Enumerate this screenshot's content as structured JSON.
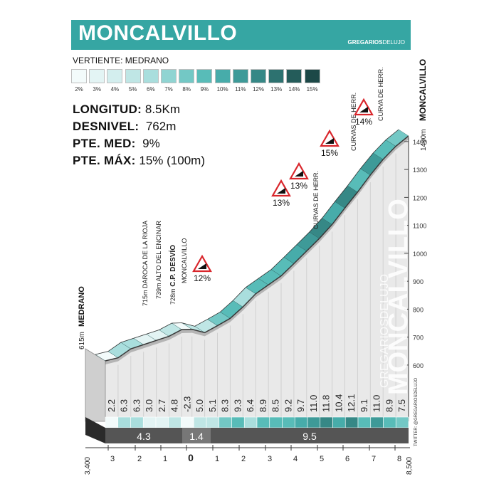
{
  "header": {
    "title": "MONCALVILLO",
    "brand_a": "GREGARIOS",
    "brand_b": "DELUJO",
    "vertiente": "VERTIENTE:  MEDRANO"
  },
  "scale": {
    "labels": [
      "2%",
      "3%",
      "4%",
      "5%",
      "6%",
      "7%",
      "8%",
      "9%",
      "10%",
      "11%",
      "12%",
      "13%",
      "14%",
      "15%"
    ],
    "colors": [
      "#f3fbfb",
      "#e3f4f4",
      "#d3eeee",
      "#bfe6e5",
      "#a9dedd",
      "#90d4d2",
      "#73c8c5",
      "#58bcb8",
      "#47acaa",
      "#3e9a98",
      "#368886",
      "#2d7270",
      "#245c5a",
      "#1c4847"
    ]
  },
  "stats": [
    {
      "label": "LONGITUD:",
      "value": "8.5Km"
    },
    {
      "label": "DESNIVEL:",
      "value": "762m"
    },
    {
      "label": "PTE. MED:",
      "value": "9%"
    },
    {
      "label": "PTE. MÁX:",
      "value": "15% (100m)"
    }
  ],
  "chart_data": {
    "type": "area",
    "y_axis_ticks": [
      "600",
      "700",
      "800",
      "900",
      "1000",
      "1100",
      "1200",
      "1300",
      "1400"
    ],
    "ylim": [
      615,
      1490
    ],
    "profile_km": [
      0,
      0.5,
      1,
      1.5,
      2,
      2.5,
      3,
      3.4,
      3.9,
      4.4,
      4.9,
      5.4,
      5.9,
      6.4,
      6.9,
      7.4,
      7.9,
      8.4,
      8.9,
      9.4,
      9.9,
      10.4,
      10.9,
      11.4,
      11.9
    ],
    "profile_elev": [
      615,
      626,
      658,
      673,
      688,
      703,
      727,
      728,
      716,
      741,
      767,
      808,
      855,
      887,
      919,
      963,
      1008,
      1053,
      1103,
      1162,
      1219,
      1280,
      1336,
      1383,
      1420
    ],
    "segment_gradients": [
      "2.2",
      "6.3",
      "6.3",
      "3.0",
      "2.7",
      "4.8",
      "-2.3",
      "5.0",
      "5.1",
      "8.3",
      "9.3",
      "6.4",
      "8.9",
      "8.5",
      "9.2",
      "9.7",
      "11.0",
      "11.8",
      "10.4",
      "12.1",
      "9.1",
      "11.0",
      "8.9",
      "7.5"
    ],
    "distance_labels": [
      "3",
      "2",
      "1",
      "0",
      "1",
      "2",
      "3",
      "4",
      "5",
      "6",
      "7",
      "8"
    ],
    "start_distance": "3,400",
    "end_distance": "8,500",
    "sections": [
      "4.3",
      "1.4",
      "9.5"
    ],
    "start_label": "615m",
    "start_name": "MEDRANO",
    "summit_label": "1490m",
    "summit_name": "MONCALVILLO",
    "waypoints": [
      {
        "text": "715m DAROCA DE LA RIOJA"
      },
      {
        "text": "739m ALTO DEL ENCINAR"
      },
      {
        "text": "728m",
        "bold": "C.P. DESVÍO"
      },
      {
        "text": "MONCALVILLO"
      },
      {
        "text": "CURVAS DE HERR."
      },
      {
        "text": "CURVAS DE HERR."
      },
      {
        "text": "CURVA DE HERR."
      }
    ],
    "grade_signs": [
      "12%",
      "13%",
      "13%",
      "15%",
      "14%"
    ],
    "watermark_a": "GREGARIOSDELUJO",
    "watermark_b": "MONCALVILLO",
    "twitter": "TWITTER: @GREGARIOSDELUJO"
  }
}
